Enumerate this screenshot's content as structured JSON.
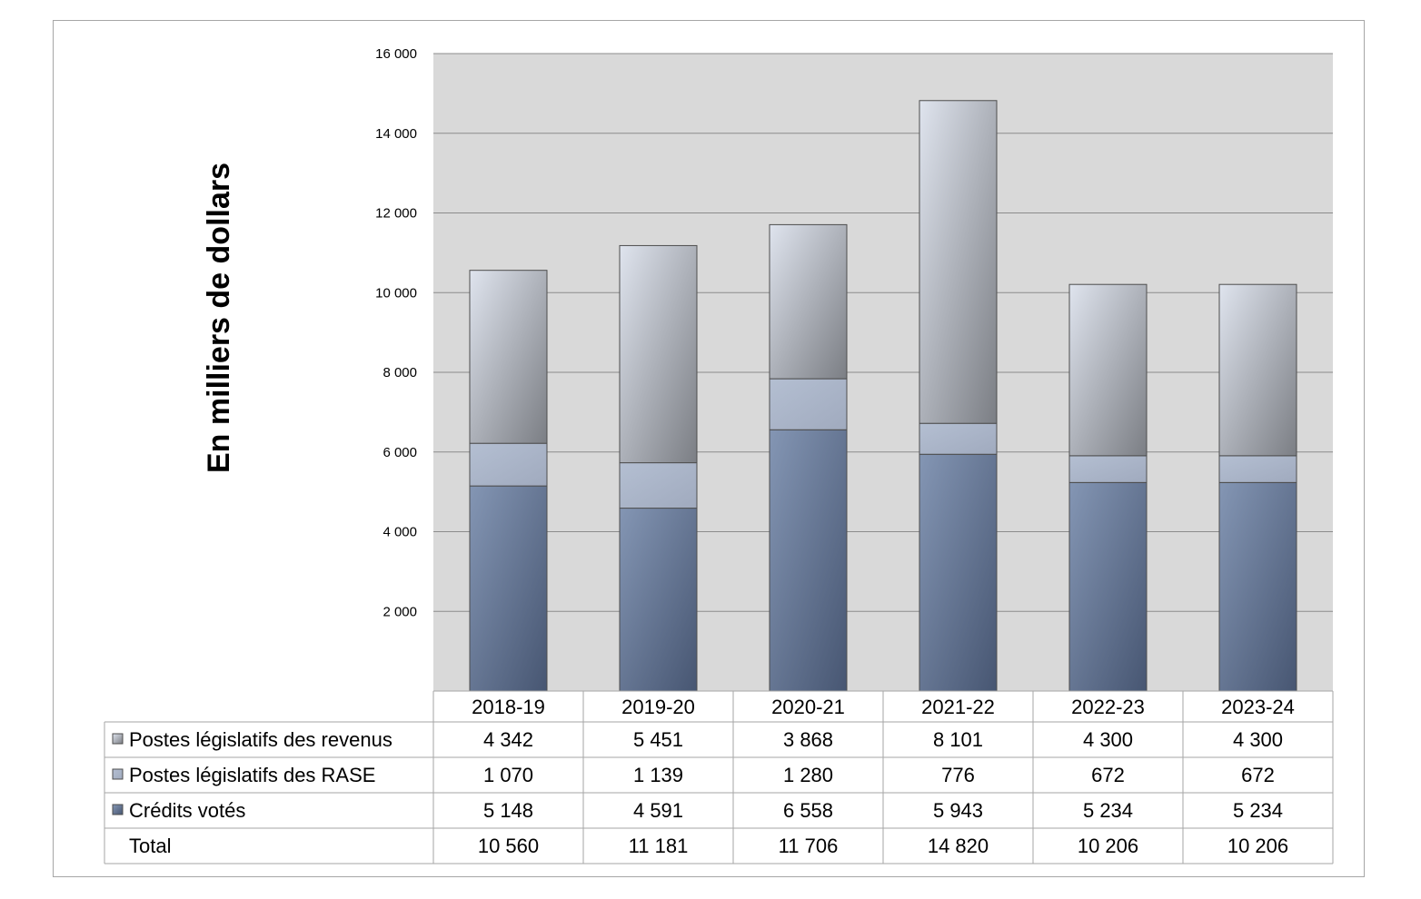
{
  "chart_data": {
    "type": "bar",
    "stacked": true,
    "ylabel": "En milliers de dollars",
    "ylim": [
      0,
      16000
    ],
    "yticks": [
      2000,
      4000,
      6000,
      8000,
      10000,
      12000,
      14000,
      16000
    ],
    "ytick_labels": [
      "2 000",
      "4 000",
      "6 000",
      "8 000",
      "10 000",
      "12 000",
      "14 000",
      "16 000"
    ],
    "grid": true,
    "legend": "data-table",
    "categories": [
      "2018-19",
      "2019-20",
      "2020-21",
      "2021-22",
      "2022-23",
      "2023-24"
    ],
    "series": [
      {
        "name": "Crédits votés",
        "values": [
          5148,
          4591,
          6558,
          5943,
          5234,
          5234
        ],
        "labels": [
          "5 148",
          "4 591",
          "6 558",
          "5 943",
          "5 234",
          "5 234"
        ],
        "color_light": "#8496b4",
        "color_dark": "#475672"
      },
      {
        "name": "Postes législatifs des RASE",
        "values": [
          1070,
          1139,
          1280,
          776,
          672,
          672
        ],
        "labels": [
          "1 070",
          "1 139",
          "1 280",
          "776",
          "672",
          "672"
        ],
        "color_light": "#b4bfd2",
        "color_dark": "#a0aabe"
      },
      {
        "name": "Postes législatifs des revenus",
        "values": [
          4342,
          5451,
          3868,
          8101,
          4300,
          4300
        ],
        "labels": [
          "4 342",
          "5 451",
          "3 868",
          "8 101",
          "4 300",
          "4 300"
        ],
        "color_light": "#dfe4ee",
        "color_dark": "#7b7e84"
      }
    ],
    "total": {
      "name": "Total",
      "values": [
        10560,
        11181,
        11706,
        14820,
        10206,
        10206
      ],
      "labels": [
        "10 560",
        "11 181",
        "11 706",
        "14 820",
        "10 206",
        "10 206"
      ]
    },
    "table_rows": [
      {
        "name": "Postes législatifs des revenus",
        "series": 2
      },
      {
        "name": "Postes législatifs des RASE",
        "series": 1
      },
      {
        "name": "Crédits votés",
        "series": 0
      },
      {
        "name": "Total",
        "series": -1
      }
    ],
    "colors": {
      "plot_background": "#d9d9d9",
      "gridline": "#8c8c8c",
      "bar_outline": "#4d4d4d",
      "table_border": "#a6a6a6"
    }
  }
}
